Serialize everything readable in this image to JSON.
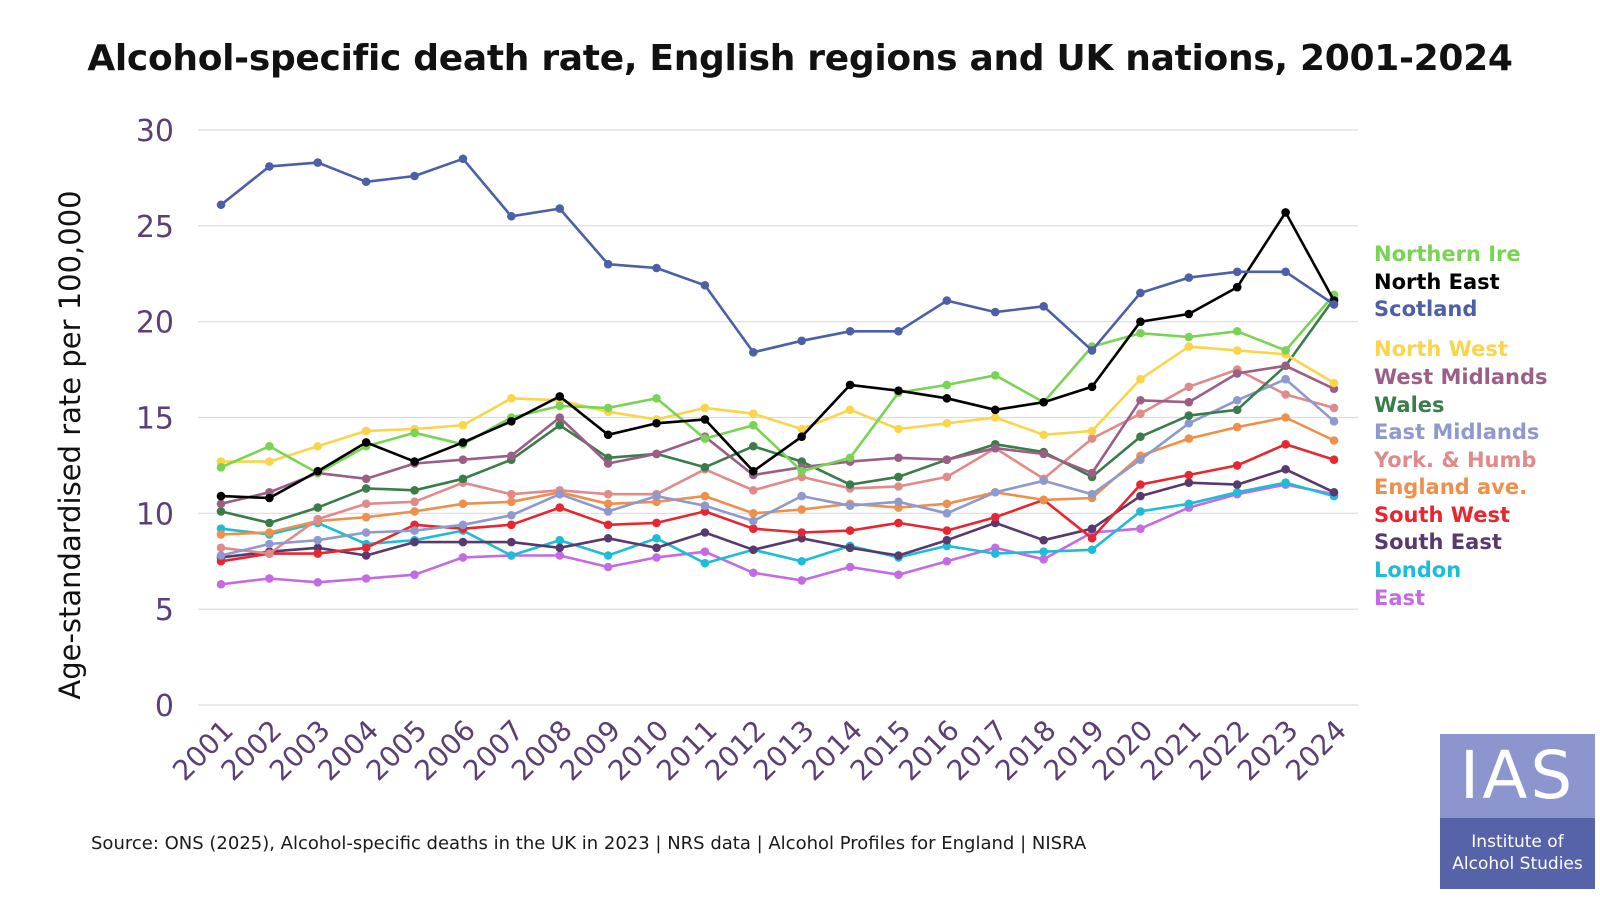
{
  "chart_data": {
    "type": "line",
    "title": "Alcohol-specific death rate, English regions and UK nations, 2001-2024",
    "ylabel": "Age-standardised rate per 100,000",
    "xlabel": "",
    "ylim": [
      0,
      30
    ],
    "yticks": [
      "0",
      "5",
      "10",
      "15",
      "20",
      "25",
      "30"
    ],
    "ytick_values": [
      0,
      5,
      10,
      15,
      20,
      25,
      30
    ],
    "grid": true,
    "legend": "right",
    "categories": [
      "2001",
      "2002",
      "2003",
      "2004",
      "2005",
      "2006",
      "2007",
      "2008",
      "2009",
      "2010",
      "2011",
      "2012",
      "2013",
      "2014",
      "2015",
      "2016",
      "2017",
      "2018",
      "2019",
      "2020",
      "2021",
      "2022",
      "2023",
      "2024"
    ],
    "series": [
      {
        "name": "Scotland",
        "color": "#4d5fa6",
        "values": [
          26.1,
          28.1,
          28.3,
          27.3,
          27.6,
          28.5,
          25.5,
          25.9,
          23.0,
          22.8,
          21.9,
          18.4,
          19.0,
          19.5,
          19.5,
          21.1,
          20.5,
          20.8,
          18.5,
          21.5,
          22.3,
          22.6,
          22.6,
          20.9
        ]
      },
      {
        "name": "North East",
        "color": "#000000",
        "values": [
          10.9,
          10.8,
          12.2,
          13.7,
          12.7,
          13.7,
          14.8,
          16.1,
          14.1,
          14.7,
          14.9,
          12.2,
          14.0,
          16.7,
          16.4,
          16.0,
          15.4,
          15.8,
          16.6,
          20.0,
          20.4,
          21.8,
          25.7,
          21.1
        ]
      },
      {
        "name": "Northern Ire",
        "color": "#78d452",
        "values": [
          12.4,
          13.5,
          12.1,
          13.5,
          14.2,
          13.6,
          15.0,
          15.6,
          15.5,
          16.0,
          13.9,
          14.6,
          12.2,
          12.9,
          16.3,
          16.7,
          17.2,
          15.8,
          18.7,
          19.4,
          19.2,
          19.5,
          18.5,
          21.4
        ]
      },
      {
        "name": "North West",
        "color": "#fad54a",
        "values": [
          12.7,
          12.7,
          13.5,
          14.3,
          14.4,
          14.6,
          16.0,
          15.9,
          15.3,
          14.9,
          15.5,
          15.2,
          14.4,
          15.4,
          14.4,
          14.7,
          15.0,
          14.1,
          14.3,
          17.0,
          18.7,
          18.5,
          18.3,
          16.8
        ]
      },
      {
        "name": "West Midlands",
        "color": "#9b5e84",
        "values": [
          10.5,
          11.1,
          12.1,
          11.8,
          12.6,
          12.8,
          13.0,
          15.0,
          12.6,
          13.1,
          14.0,
          12.0,
          12.4,
          12.7,
          12.9,
          12.8,
          13.4,
          13.1,
          12.1,
          15.9,
          15.8,
          17.3,
          17.7,
          16.5
        ]
      },
      {
        "name": "Wales",
        "color": "#3a7d4a",
        "values": [
          10.1,
          9.5,
          10.3,
          11.3,
          11.2,
          11.8,
          12.8,
          14.6,
          12.9,
          13.1,
          12.4,
          13.5,
          12.7,
          11.5,
          11.9,
          12.8,
          13.6,
          13.2,
          11.9,
          14.0,
          15.1,
          15.4,
          17.7,
          21.2
        ]
      },
      {
        "name": "East Midlands",
        "color": "#8d99cf",
        "values": [
          7.8,
          8.4,
          8.6,
          9.0,
          9.1,
          9.4,
          9.9,
          11.0,
          10.1,
          10.9,
          10.4,
          9.6,
          10.9,
          10.4,
          10.6,
          10.0,
          11.1,
          11.7,
          11.0,
          12.8,
          14.7,
          15.9,
          17.0,
          14.8
        ]
      },
      {
        "name": "York. & Humb",
        "color": "#e08a8a",
        "values": [
          8.2,
          7.9,
          9.7,
          10.5,
          10.6,
          11.6,
          11.0,
          11.2,
          11.0,
          11.0,
          12.3,
          11.2,
          11.9,
          11.3,
          11.4,
          11.9,
          13.4,
          11.8,
          13.9,
          15.2,
          16.6,
          17.5,
          16.2,
          15.5
        ]
      },
      {
        "name": "England ave.",
        "color": "#ef8f4c",
        "values": [
          8.9,
          9.0,
          9.6,
          9.8,
          10.1,
          10.5,
          10.6,
          11.1,
          10.5,
          10.6,
          10.9,
          10.0,
          10.2,
          10.5,
          10.3,
          10.5,
          11.1,
          10.7,
          10.8,
          13.0,
          13.9,
          14.5,
          15.0,
          13.8
        ]
      },
      {
        "name": "South West",
        "color": "#e8262f",
        "values": [
          7.5,
          7.9,
          7.9,
          8.2,
          9.4,
          9.2,
          9.4,
          10.3,
          9.4,
          9.5,
          10.1,
          9.2,
          9.0,
          9.1,
          9.5,
          9.1,
          9.8,
          10.7,
          8.7,
          11.5,
          12.0,
          12.5,
          13.6,
          12.8
        ]
      },
      {
        "name": "South East",
        "color": "#583a6e",
        "values": [
          7.7,
          8.0,
          8.2,
          7.8,
          8.5,
          8.5,
          8.5,
          8.2,
          8.7,
          8.2,
          9.0,
          8.1,
          8.7,
          8.2,
          7.8,
          8.6,
          9.5,
          8.6,
          9.2,
          10.9,
          11.6,
          11.5,
          12.3,
          11.1
        ]
      },
      {
        "name": "London",
        "color": "#1dbcd9",
        "values": [
          9.2,
          8.9,
          9.5,
          8.4,
          8.6,
          9.1,
          7.8,
          8.6,
          7.8,
          8.7,
          7.4,
          8.1,
          7.5,
          8.3,
          7.7,
          8.3,
          7.9,
          8.0,
          8.1,
          10.1,
          10.5,
          11.1,
          11.6,
          10.9
        ]
      },
      {
        "name": "East",
        "color": "#c46be3",
        "values": [
          6.3,
          6.6,
          6.4,
          6.6,
          6.8,
          7.7,
          7.8,
          7.8,
          7.2,
          7.7,
          8.0,
          6.9,
          6.5,
          7.2,
          6.8,
          7.5,
          8.2,
          7.6,
          9.0,
          9.2,
          10.3,
          11.0,
          11.5,
          11.0
        ]
      }
    ],
    "legend_entries": [
      {
        "label": "Northern Ire",
        "color": "#78d452"
      },
      {
        "label": "North East",
        "color": "#000000"
      },
      {
        "label": "Scotland",
        "color": "#4d5fa6"
      },
      {
        "label": "North West",
        "color": "#fad54a"
      },
      {
        "label": "West Midlands",
        "color": "#9b5e84"
      },
      {
        "label": "Wales",
        "color": "#3a7d4a"
      },
      {
        "label": "East Midlands",
        "color": "#8d99cf"
      },
      {
        "label": "York. & Humb",
        "color": "#e08a8a"
      },
      {
        "label": "England ave.",
        "color": "#ef8f4c"
      },
      {
        "label": "South West",
        "color": "#e8262f"
      },
      {
        "label": "South East",
        "color": "#583a6e"
      },
      {
        "label": "London",
        "color": "#1dbcd9"
      },
      {
        "label": "East",
        "color": "#c46be3"
      }
    ]
  },
  "source": "Source: ONS (2025), Alcohol-specific deaths in the UK in 2023 | NRS data | Alcohol Profiles for England | NISRA",
  "logo": {
    "abbr": "IAS",
    "line1": "Institute of",
    "line2": "Alcohol Studies"
  },
  "colors": {
    "axis_text": "#5b3f75",
    "grid": "#dcdcdc",
    "logo_top": "#8d95cf",
    "logo_bottom": "#5763a9"
  }
}
